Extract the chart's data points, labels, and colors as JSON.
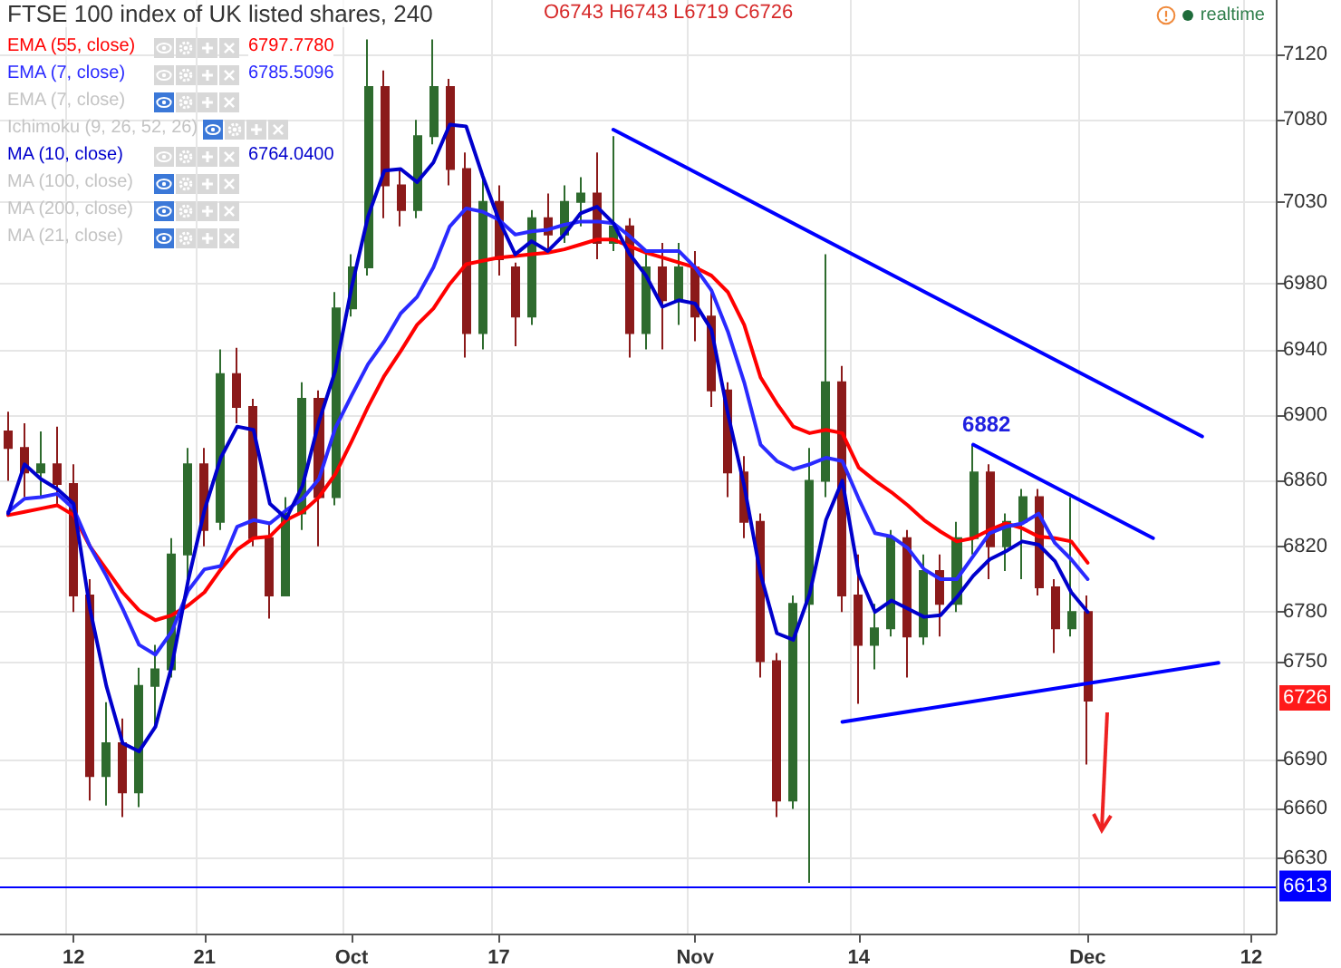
{
  "chart_data": {
    "type": "candlestick",
    "title": "FTSE 100 index of UK listed shares, 240",
    "categories": [
      null,
      null,
      null,
      null,
      "12",
      null,
      null,
      null,
      null,
      null,
      null,
      null,
      "21",
      null,
      null,
      null,
      null,
      null,
      null,
      null,
      null,
      "Oct",
      null,
      null,
      null,
      null,
      null,
      null,
      null,
      null,
      "17",
      null,
      null,
      null,
      null,
      null,
      null,
      null,
      null,
      null,
      null,
      null,
      "Nov",
      null,
      null,
      null,
      null,
      null,
      null,
      null,
      null,
      null,
      "14",
      null,
      null,
      null,
      null,
      null,
      null,
      null,
      null,
      null,
      null,
      null,
      null,
      null,
      "Dec",
      null,
      null,
      null,
      null,
      null,
      null,
      null,
      null,
      null,
      "12",
      null
    ],
    "ohlc": [
      [
        6890,
        6902,
        6860,
        6880
      ],
      [
        6880,
        6895,
        6850,
        6865
      ],
      [
        6865,
        6890,
        6850,
        6870
      ],
      [
        6870,
        6893,
        6845,
        6858
      ],
      [
        6858,
        6870,
        6780,
        6790
      ],
      [
        6790,
        6800,
        6665,
        6680
      ],
      [
        6680,
        6725,
        6662,
        6700
      ],
      [
        6700,
        6715,
        6655,
        6670
      ],
      [
        6670,
        6746,
        6661,
        6735
      ],
      [
        6735,
        6760,
        6710,
        6745
      ],
      [
        6745,
        6825,
        6740,
        6815
      ],
      [
        6815,
        6880,
        6800,
        6870
      ],
      [
        6870,
        6880,
        6820,
        6830
      ],
      [
        6835,
        6940,
        6830,
        6925
      ],
      [
        6925,
        6941,
        6895,
        6905
      ],
      [
        6905,
        6910,
        6820,
        6825
      ],
      [
        6825,
        6835,
        6776,
        6790
      ],
      [
        6790,
        6850,
        6790,
        6840
      ],
      [
        6840,
        6920,
        6830,
        6910
      ],
      [
        6910,
        6915,
        6820,
        6850
      ],
      [
        6850,
        6975,
        6845,
        6965
      ],
      [
        6965,
        6998,
        6960,
        6990
      ],
      [
        6990,
        7129,
        6985,
        7100
      ],
      [
        7100,
        7110,
        7020,
        7040
      ],
      [
        7040,
        7050,
        7015,
        7025
      ],
      [
        7025,
        7080,
        7020,
        7070
      ],
      [
        7070,
        7129,
        7065,
        7100
      ],
      [
        7100,
        7105,
        7040,
        7050
      ],
      [
        7050,
        7060,
        6935,
        6950
      ],
      [
        6950,
        7045,
        6940,
        7030
      ],
      [
        7030,
        7040,
        6985,
        6995
      ],
      [
        6990,
        6993,
        6942,
        6960
      ],
      [
        6960,
        7025,
        6955,
        7020
      ],
      [
        7020,
        7035,
        7000,
        7010
      ],
      [
        7010,
        7040,
        7005,
        7030
      ],
      [
        7030,
        7045,
        7015,
        7035
      ],
      [
        7035,
        7060,
        6995,
        7005
      ],
      [
        7005,
        7070,
        7000,
        7015
      ],
      [
        7015,
        7020,
        6935,
        6950
      ],
      [
        6950,
        7000,
        6940,
        6990
      ],
      [
        6990,
        7005,
        6940,
        6970
      ],
      [
        6970,
        7005,
        6955,
        6990
      ],
      [
        6990,
        7000,
        6945,
        6960
      ],
      [
        6960,
        6975,
        6905,
        6915
      ],
      [
        6915,
        6920,
        6850,
        6865
      ],
      [
        6865,
        6875,
        6825,
        6835
      ],
      [
        6835,
        6840,
        6740,
        6750
      ],
      [
        6750,
        6755,
        6655,
        6665
      ],
      [
        6665,
        6790,
        6660,
        6785
      ],
      [
        6785,
        6880,
        6615,
        6860
      ],
      [
        6860,
        6998,
        6850,
        6920
      ],
      [
        6920,
        6930,
        6780,
        6790
      ],
      [
        6790,
        6815,
        6724,
        6760
      ],
      [
        6760,
        6785,
        6745,
        6770
      ],
      [
        6770,
        6830,
        6765,
        6825
      ],
      [
        6825,
        6830,
        6740,
        6765
      ],
      [
        6765,
        6815,
        6760,
        6805
      ],
      [
        6805,
        6815,
        6765,
        6785
      ],
      [
        6785,
        6835,
        6780,
        6825
      ],
      [
        6825,
        6882,
        6815,
        6865
      ],
      [
        6865,
        6870,
        6800,
        6820
      ],
      [
        6820,
        6840,
        6805,
        6835
      ],
      [
        6835,
        6855,
        6800,
        6850
      ],
      [
        6850,
        6855,
        6790,
        6795
      ],
      [
        6795,
        6800,
        6755,
        6770
      ],
      [
        6770,
        6850,
        6765,
        6780
      ],
      [
        6780,
        6790,
        6687,
        6726
      ],
      null,
      null,
      null,
      null,
      null,
      null,
      null,
      null,
      null,
      null,
      null
    ],
    "colors": [
      "#8b1a1a",
      "#8b1a1a",
      "#2e6b2e",
      "#8b1a1a",
      "#8b1a1a",
      "#8b1a1a",
      "#2e6b2e",
      "#8b1a1a",
      "#2e6b2e",
      "#2e6b2e",
      "#2e6b2e",
      "#2e6b2e",
      "#8b1a1a",
      "#2e6b2e",
      "#8b1a1a",
      "#8b1a1a",
      "#8b1a1a",
      "#2e6b2e",
      "#2e6b2e",
      "#8b1a1a",
      "#2e6b2e",
      "#2e6b2e",
      "#2e6b2e",
      "#8b1a1a",
      "#8b1a1a",
      "#2e6b2e",
      "#2e6b2e",
      "#8b1a1a",
      "#8b1a1a",
      "#2e6b2e",
      "#8b1a1a",
      "#8b1a1a",
      "#2e6b2e",
      "#8b1a1a",
      "#2e6b2e",
      "#2e6b2e",
      "#8b1a1a",
      "#2e6b2e",
      "#8b1a1a",
      "#2e6b2e",
      "#8b1a1a",
      "#2e6b2e",
      "#8b1a1a",
      "#8b1a1a",
      "#8b1a1a",
      "#8b1a1a",
      "#8b1a1a",
      "#8b1a1a",
      "#2e6b2e",
      "#2e6b2e",
      "#2e6b2e",
      "#8b1a1a",
      "#8b1a1a",
      "#2e6b2e",
      "#2e6b2e",
      "#8b1a1a",
      "#2e6b2e",
      "#8b1a1a",
      "#2e6b2e",
      "#2e6b2e",
      "#8b1a1a",
      "#2e6b2e",
      "#2e6b2e",
      "#8b1a1a",
      "#8b1a1a",
      "#2e6b2e",
      "#8b1a1a",
      null,
      null,
      null,
      null,
      null,
      null,
      null,
      null,
      null,
      null,
      null
    ],
    "series": [
      {
        "name": "EMA (55, close)",
        "type": "line",
        "color": "#ff0000",
        "values": [
          6839,
          6841,
          6843,
          6845,
          6839,
          6820,
          6806,
          6792,
          6781,
          6775,
          6778,
          6784,
          6792,
          6806,
          6818,
          6825,
          6826,
          6836,
          6841,
          6850,
          6864,
          6884,
          6905,
          6924,
          6939,
          6955,
          6965,
          6980,
          6992,
          6994,
          6996,
          6997,
          6998,
          6999,
          7001,
          7004,
          7007,
          7007,
          7003,
          6999,
          6996,
          6993,
          6990,
          6985,
          6975,
          6955,
          6923,
          6907,
          6893,
          6889,
          6891,
          6889,
          6868,
          6860,
          6853,
          6845,
          6836,
          6829,
          6823,
          6825,
          6830,
          6834,
          6831,
          6826,
          6825,
          6823,
          6810,
          null,
          null,
          null,
          null,
          null,
          null,
          null,
          null,
          null,
          null,
          null
        ]
      },
      {
        "name": "EMA (7, close)",
        "type": "line",
        "color": "#2a2aff",
        "values": [
          6841,
          6849,
          6850,
          6852,
          6843,
          6820,
          6802,
          6782,
          6760,
          6754,
          6768,
          6793,
          6806,
          6808,
          6832,
          6836,
          6834,
          6842,
          6849,
          6861,
          6892,
          6912,
          6931,
          6945,
          6962,
          6972,
          6990,
          7015,
          7026,
          7024,
          7019,
          7010,
          7012,
          7013,
          7016,
          7018,
          7018,
          7017,
          7009,
          7000,
          7000,
          7000,
          6990,
          6976,
          6951,
          6920,
          6882,
          6872,
          6867,
          6870,
          6874,
          6872,
          6849,
          6828,
          6826,
          6819,
          6806,
          6800,
          6800,
          6814,
          6828,
          6832,
          6834,
          6840,
          6822,
          6812,
          6800,
          null,
          null,
          null,
          null,
          null,
          null,
          null,
          null,
          null,
          null,
          null
        ]
      },
      {
        "name": "MA (10, close)",
        "type": "line",
        "color": "#0000cc",
        "values": [
          6840,
          6870,
          6861,
          6855,
          6846,
          6782,
          6735,
          6700,
          6695,
          6710,
          6747,
          6799,
          6842,
          6874,
          6893,
          6891,
          6846,
          6837,
          6857,
          6896,
          6927,
          6978,
          7021,
          7049,
          7050,
          7042,
          7054,
          7077,
          7076,
          7046,
          7019,
          6998,
          7006,
          7000,
          7010,
          7023,
          7027,
          7017,
          6998,
          6985,
          6966,
          6970,
          6968,
          6952,
          6901,
          6857,
          6803,
          6767,
          6763,
          6791,
          6836,
          6860,
          6803,
          6780,
          6787,
          6782,
          6777,
          6778,
          6789,
          6802,
          6812,
          6817,
          6823,
          6821,
          6811,
          6792,
          6780,
          null,
          null,
          null,
          null,
          null,
          null,
          null,
          null,
          null,
          null,
          null
        ]
      },
      {
        "type": "line",
        "color": "#0000ff",
        "values": [
          null,
          null,
          null,
          null,
          null,
          null,
          null,
          null,
          null,
          null,
          null,
          null,
          null,
          null,
          null,
          null,
          null,
          null,
          null,
          null,
          null,
          null,
          null,
          null,
          null,
          null,
          null,
          null,
          null,
          null,
          null,
          null,
          null,
          null,
          null,
          null,
          null,
          7074,
          null,
          null,
          null,
          null,
          null,
          null,
          null,
          null,
          null,
          null,
          null,
          null,
          null,
          null,
          null,
          null,
          null,
          null,
          null,
          null,
          null,
          null,
          null,
          null,
          null,
          null,
          null,
          null,
          null,
          null,
          null,
          null,
          null,
          null,
          null,
          6887,
          null,
          null,
          null,
          null
        ]
      },
      {
        "type": "line",
        "color": "#0000ff",
        "values": [
          null,
          null,
          null,
          null,
          null,
          null,
          null,
          null,
          null,
          null,
          null,
          null,
          null,
          null,
          null,
          null,
          null,
          null,
          null,
          null,
          null,
          null,
          null,
          null,
          null,
          null,
          null,
          null,
          null,
          null,
          null,
          null,
          null,
          null,
          null,
          null,
          null,
          null,
          null,
          null,
          null,
          null,
          null,
          null,
          null,
          null,
          null,
          null,
          null,
          null,
          null,
          null,
          null,
          null,
          null,
          null,
          null,
          null,
          null,
          6882,
          null,
          null,
          null,
          null,
          null,
          null,
          null,
          null,
          null,
          null,
          6825,
          null,
          null,
          null,
          null,
          null,
          null,
          null
        ]
      },
      {
        "type": "line",
        "color": "#0000ff",
        "values": [
          null,
          null,
          null,
          null,
          null,
          null,
          null,
          null,
          null,
          null,
          null,
          null,
          null,
          null,
          null,
          null,
          null,
          null,
          null,
          null,
          null,
          null,
          null,
          null,
          null,
          null,
          null,
          null,
          null,
          null,
          null,
          null,
          null,
          null,
          null,
          null,
          null,
          null,
          null,
          null,
          null,
          null,
          null,
          null,
          null,
          null,
          null,
          null,
          null,
          null,
          null,
          6713,
          null,
          null,
          null,
          null,
          null,
          null,
          null,
          null,
          null,
          null,
          null,
          null,
          null,
          null,
          null,
          null,
          null,
          null,
          null,
          null,
          null,
          null,
          6749,
          null,
          null,
          null
        ]
      }
    ],
    "ylim": [
      6584,
      7153
    ],
    "yticks": [
      7120,
      7080,
      7030,
      6980,
      6940,
      6900,
      6860,
      6820,
      6780,
      6750,
      6690,
      6660,
      6630
    ],
    "grid": true,
    "legend": "top left",
    "marker": "none",
    "line_style": "solid",
    "ref_lines": [
      {
        "axis": "y",
        "value": 6613,
        "label": "6613",
        "color": "#0000ff"
      }
    ],
    "annotations": [
      "O6743 H6743 L6719 C6726",
      "6797.7780",
      "6785.5096",
      "6764.0400",
      "EMA (7, close)",
      "Ichimoku (9, 26, 52, 26)",
      "MA (100, close)",
      "MA (200, close)",
      "MA (21, close)",
      "realtime",
      {
        "text": "6882",
        "y": 6882
      },
      {
        "text": "6726",
        "y": 6726
      }
    ]
  }
}
